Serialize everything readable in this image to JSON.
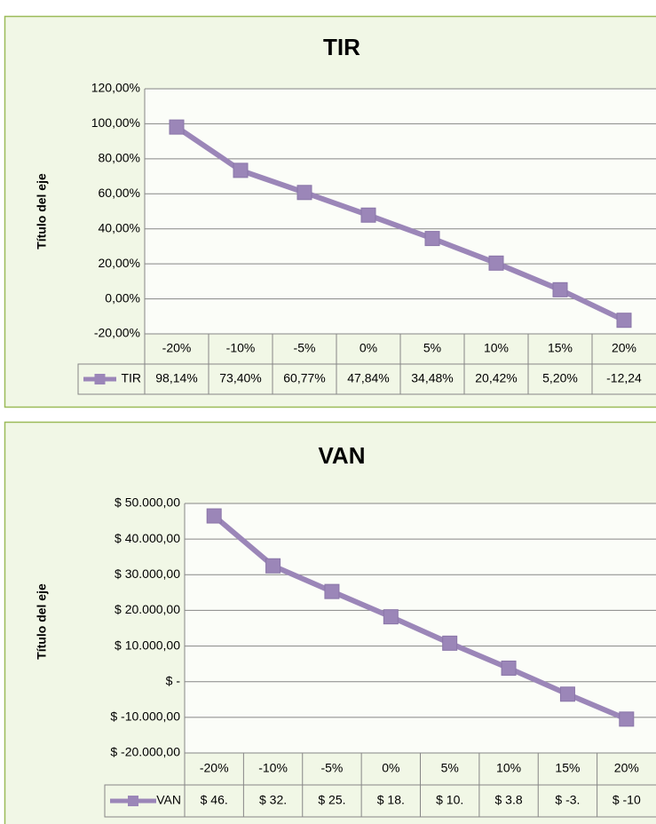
{
  "chart_data": [
    {
      "type": "line",
      "title": "TIR",
      "y_label": "Título del eje",
      "categories": [
        "-20%",
        "-10%",
        "-5%",
        "0%",
        "5%",
        "10%",
        "15%",
        "20%"
      ],
      "series": [
        {
          "name": "TIR",
          "color": "#9b86b8",
          "values": [
            98.14,
            73.4,
            60.77,
            47.84,
            34.48,
            20.42,
            5.2,
            -12.24
          ],
          "value_labels": [
            "98,14%",
            "73,40%",
            "60,77%",
            "47,84%",
            "34,48%",
            "20,42%",
            "5,20%",
            "-12,24"
          ]
        }
      ],
      "ylim": [
        -20,
        120
      ],
      "yticks": [
        {
          "value": 120,
          "label": "120,00%"
        },
        {
          "value": 100,
          "label": "100,00%"
        },
        {
          "value": 80,
          "label": "80,00%"
        },
        {
          "value": 60,
          "label": "60,00%"
        },
        {
          "value": 40,
          "label": "40,00%"
        },
        {
          "value": 20,
          "label": "20,00%"
        },
        {
          "value": 0,
          "label": "0,00%"
        },
        {
          "value": -20,
          "label": "-20,00%"
        }
      ],
      "grid": true
    },
    {
      "type": "line",
      "title": "VAN",
      "y_label": "Título del eje",
      "categories": [
        "-20%",
        "-10%",
        "-5%",
        "0%",
        "5%",
        "10%",
        "15%",
        "20%"
      ],
      "series": [
        {
          "name": "VAN",
          "color": "#9b86b8",
          "values": [
            46500,
            32500,
            25300,
            18200,
            10800,
            3800,
            -3500,
            -10500
          ],
          "value_labels": [
            "$ 46.",
            "$ 32.",
            "$ 25.",
            "$ 18.",
            "$ 10.",
            "$ 3.8",
            "$ -3.",
            "$ -10"
          ]
        }
      ],
      "ylim": [
        -20000,
        50000
      ],
      "yticks": [
        {
          "value": 50000,
          "label": "$ 50.000,00"
        },
        {
          "value": 40000,
          "label": "$ 40.000,00"
        },
        {
          "value": 30000,
          "label": "$ 30.000,00"
        },
        {
          "value": 20000,
          "label": "$ 20.000,00"
        },
        {
          "value": 10000,
          "label": "$ 10.000,00"
        },
        {
          "value": 0,
          "label": "$ -"
        },
        {
          "value": -10000,
          "label": "$ -10.000,00"
        },
        {
          "value": -20000,
          "label": "$ -20.000,00"
        }
      ],
      "grid": true
    }
  ]
}
